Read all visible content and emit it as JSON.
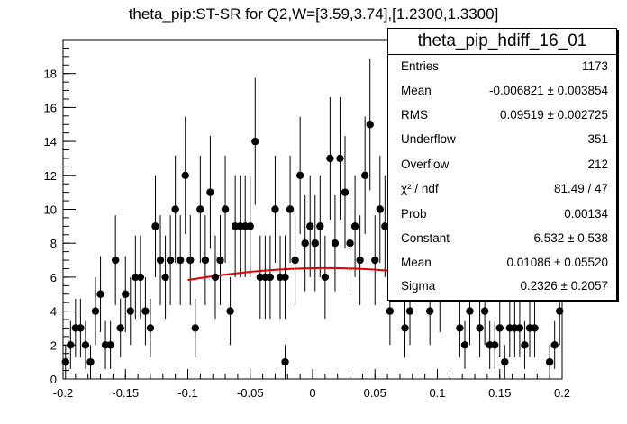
{
  "title": "theta_pip:ST-SR for Q2,W=[3.59,3.74],[1.2300,1.3300]",
  "statbox": {
    "name": "theta_pip_hdiff_16_01",
    "rows": [
      {
        "key": "Entries",
        "value": "1173"
      },
      {
        "key": "Mean",
        "value": "-0.006821 ± 0.003854"
      },
      {
        "key": "RMS",
        "value": "0.09519 ± 0.002725"
      },
      {
        "key": "Underflow",
        "value": "351"
      },
      {
        "key": "Overflow",
        "value": "212"
      },
      {
        "key": "χ² / ndf",
        "value": "81.49 / 47"
      },
      {
        "key": "Prob",
        "value": "0.00134"
      },
      {
        "key": "Constant",
        "value": "6.532 ± 0.538"
      },
      {
        "key": "Mean",
        "value": "0.01086 ± 0.05520"
      },
      {
        "key": "Sigma",
        "value": "0.2326 ± 0.2057"
      }
    ]
  },
  "chart_data": {
    "type": "scatter",
    "xlim": [
      -0.2,
      0.2
    ],
    "ylim": [
      0,
      20
    ],
    "xticks": [
      "-0.2",
      "-0.15",
      "-0.1",
      "-0.05",
      "0",
      "0.05",
      "0.1",
      "0.15",
      "0.2"
    ],
    "yticks": [
      "0",
      "2",
      "4",
      "6",
      "8",
      "10",
      "12",
      "14",
      "16",
      "18"
    ],
    "marker_color": "#000000",
    "fit_color": "#e00000",
    "points": [
      {
        "x": -0.198,
        "y": 1,
        "err": 1.0
      },
      {
        "x": -0.194,
        "y": 2,
        "err": 1.41
      },
      {
        "x": -0.19,
        "y": 3,
        "err": 1.73
      },
      {
        "x": -0.186,
        "y": 3,
        "err": 1.73
      },
      {
        "x": -0.182,
        "y": 2,
        "err": 1.41
      },
      {
        "x": -0.178,
        "y": 1,
        "err": 1.0
      },
      {
        "x": -0.174,
        "y": 4,
        "err": 2.0
      },
      {
        "x": -0.17,
        "y": 5,
        "err": 2.24
      },
      {
        "x": -0.166,
        "y": 2,
        "err": 1.41
      },
      {
        "x": -0.162,
        "y": 2,
        "err": 1.41
      },
      {
        "x": -0.158,
        "y": 7,
        "err": 2.65
      },
      {
        "x": -0.154,
        "y": 3,
        "err": 1.73
      },
      {
        "x": -0.15,
        "y": 5,
        "err": 2.24
      },
      {
        "x": -0.146,
        "y": 4,
        "err": 2.0
      },
      {
        "x": -0.142,
        "y": 6,
        "err": 2.45
      },
      {
        "x": -0.138,
        "y": 6,
        "err": 2.45
      },
      {
        "x": -0.134,
        "y": 4,
        "err": 2.0
      },
      {
        "x": -0.13,
        "y": 3,
        "err": 1.73
      },
      {
        "x": -0.126,
        "y": 9,
        "err": 3.0
      },
      {
        "x": -0.122,
        "y": 7,
        "err": 2.65
      },
      {
        "x": -0.118,
        "y": 6,
        "err": 2.45
      },
      {
        "x": -0.114,
        "y": 7,
        "err": 2.65
      },
      {
        "x": -0.11,
        "y": 10,
        "err": 3.16
      },
      {
        "x": -0.106,
        "y": 7,
        "err": 2.65
      },
      {
        "x": -0.102,
        "y": 12,
        "err": 3.46
      },
      {
        "x": -0.098,
        "y": 7,
        "err": 2.65
      },
      {
        "x": -0.094,
        "y": 3,
        "err": 1.73
      },
      {
        "x": -0.09,
        "y": 10,
        "err": 3.16
      },
      {
        "x": -0.086,
        "y": 7,
        "err": 2.65
      },
      {
        "x": -0.082,
        "y": 11,
        "err": 3.32
      },
      {
        "x": -0.078,
        "y": 6,
        "err": 2.45
      },
      {
        "x": -0.074,
        "y": 7,
        "err": 2.65
      },
      {
        "x": -0.07,
        "y": 10,
        "err": 3.16
      },
      {
        "x": -0.066,
        "y": 4,
        "err": 2.0
      },
      {
        "x": -0.062,
        "y": 9,
        "err": 3.0
      },
      {
        "x": -0.058,
        "y": 9,
        "err": 3.0
      },
      {
        "x": -0.054,
        "y": 9,
        "err": 3.0
      },
      {
        "x": -0.05,
        "y": 9,
        "err": 3.0
      },
      {
        "x": -0.046,
        "y": 14,
        "err": 3.74
      },
      {
        "x": -0.042,
        "y": 6,
        "err": 2.45
      },
      {
        "x": -0.038,
        "y": 6,
        "err": 2.45
      },
      {
        "x": -0.034,
        "y": 6,
        "err": 2.45
      },
      {
        "x": -0.03,
        "y": 10,
        "err": 3.16
      },
      {
        "x": -0.026,
        "y": 6,
        "err": 2.45
      },
      {
        "x": -0.022,
        "y": 6,
        "err": 2.45
      },
      {
        "x": -0.018,
        "y": 10,
        "err": 3.16
      },
      {
        "x": -0.014,
        "y": 7,
        "err": 2.65
      },
      {
        "x": -0.01,
        "y": 12,
        "err": 3.46
      },
      {
        "x": -0.006,
        "y": 8,
        "err": 2.83
      },
      {
        "x": -0.002,
        "y": 9,
        "err": 3.0
      },
      {
        "x": 0.002,
        "y": 8,
        "err": 2.83
      },
      {
        "x": 0.006,
        "y": 9,
        "err": 3.0
      },
      {
        "x": 0.01,
        "y": 6,
        "err": 2.45
      },
      {
        "x": 0.014,
        "y": 13,
        "err": 3.61
      },
      {
        "x": 0.018,
        "y": 8,
        "err": 2.83
      },
      {
        "x": 0.022,
        "y": 13,
        "err": 3.61
      },
      {
        "x": 0.026,
        "y": 11,
        "err": 3.32
      },
      {
        "x": 0.03,
        "y": 8,
        "err": 2.83
      },
      {
        "x": 0.034,
        "y": 9,
        "err": 3.0
      },
      {
        "x": 0.038,
        "y": 7,
        "err": 2.65
      },
      {
        "x": 0.042,
        "y": 12,
        "err": 3.46
      },
      {
        "x": 0.046,
        "y": 15,
        "err": 3.87
      },
      {
        "x": 0.05,
        "y": 7,
        "err": 2.65
      },
      {
        "x": 0.054,
        "y": 10,
        "err": 3.16
      },
      {
        "x": 0.058,
        "y": 9,
        "err": 3.0
      },
      {
        "x": 0.062,
        "y": 4,
        "err": 2.0
      },
      {
        "x": 0.074,
        "y": 3,
        "err": 1.73
      },
      {
        "x": 0.078,
        "y": 4,
        "err": 2.0
      },
      {
        "x": -0.022,
        "y": 1,
        "err": 1.0
      },
      {
        "x": 0.094,
        "y": 4,
        "err": 2.0
      },
      {
        "x": 0.102,
        "y": 5,
        "err": 2.24
      },
      {
        "x": 0.118,
        "y": 3,
        "err": 1.73
      },
      {
        "x": 0.122,
        "y": 2,
        "err": 1.41
      },
      {
        "x": 0.126,
        "y": 4,
        "err": 2.0
      },
      {
        "x": 0.134,
        "y": 3,
        "err": 1.73
      },
      {
        "x": 0.138,
        "y": 4,
        "err": 2.0
      },
      {
        "x": 0.142,
        "y": 2,
        "err": 1.41
      },
      {
        "x": 0.146,
        "y": 2,
        "err": 1.41
      },
      {
        "x": 0.15,
        "y": 3,
        "err": 1.73
      },
      {
        "x": 0.154,
        "y": 1,
        "err": 1.0
      },
      {
        "x": 0.158,
        "y": 3,
        "err": 1.73
      },
      {
        "x": 0.162,
        "y": 3,
        "err": 1.73
      },
      {
        "x": 0.166,
        "y": 3,
        "err": 1.73
      },
      {
        "x": 0.17,
        "y": 2,
        "err": 1.41
      },
      {
        "x": 0.174,
        "y": 3,
        "err": 1.73
      },
      {
        "x": 0.178,
        "y": 3,
        "err": 1.73
      },
      {
        "x": 0.19,
        "y": 1,
        "err": 1.0
      },
      {
        "x": 0.194,
        "y": 2,
        "err": 1.41
      },
      {
        "x": 0.198,
        "y": 4,
        "err": 2.0
      }
    ],
    "fit": {
      "function": "gaus",
      "constant": 6.532,
      "mean": 0.01086,
      "sigma": 0.2326,
      "range": [
        -0.1,
        0.1
      ]
    }
  }
}
